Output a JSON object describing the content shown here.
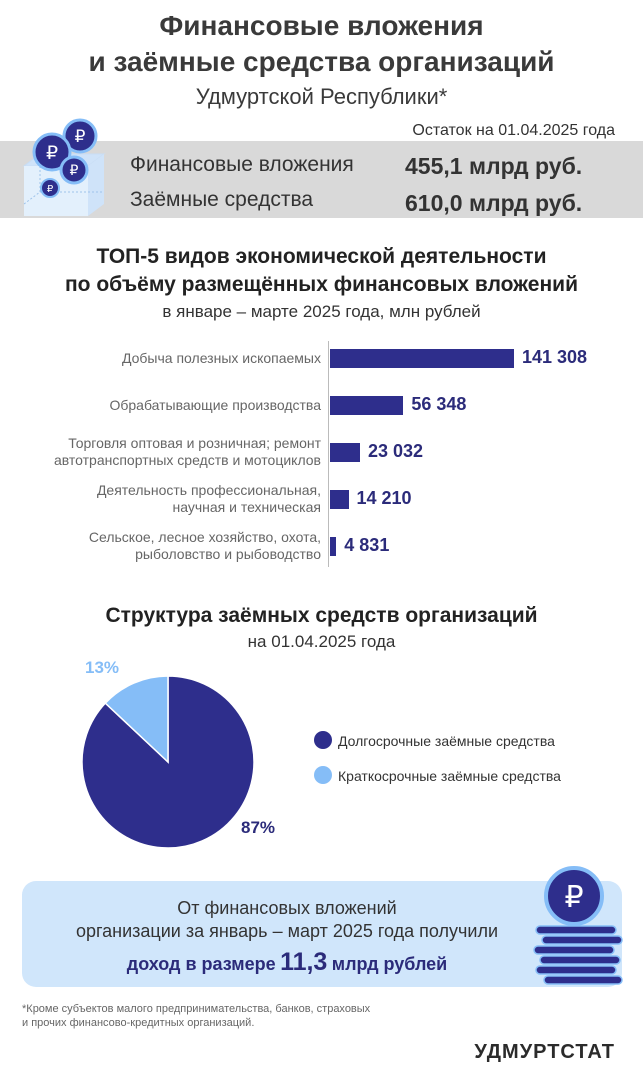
{
  "header": {
    "title_line1": "Финансовые вложения",
    "title_line2": "и заёмные средства организаций",
    "title_line3": "Удмуртской Республики*"
  },
  "summary": {
    "as_of": "Остаток на 01.04.2025 года",
    "rows": [
      {
        "label": "Финансовые вложения",
        "value": "455,1 млрд руб."
      },
      {
        "label": "Заёмные средства",
        "value": "610,0 млрд руб."
      }
    ],
    "coin_symbol": "₽"
  },
  "top5": {
    "title_line1": "ТОП-5 видов экономической деятельности",
    "title_line2": "по объёму размещённых финансовых вложений",
    "subtitle": "в январе – марте 2025 года, млн рублей"
  },
  "loans": {
    "title": "Структура заёмных средств организаций",
    "subtitle": "на 01.04.2025 года"
  },
  "chart_data": [
    {
      "type": "bar",
      "orientation": "horizontal",
      "categories": [
        [
          "Добыча полезных ископаемых"
        ],
        [
          "Обрабатывающие производства"
        ],
        [
          "Торговля оптовая и розничная; ремонт",
          "автотранспортных средств и мотоциклов"
        ],
        [
          "Деятельность профессиональная,",
          "научная и техническая"
        ],
        [
          "Сельское, лесное хозяйство, охота,",
          "рыболовство и рыбоводство"
        ]
      ],
      "values": [
        141308,
        56348,
        23032,
        14210,
        4831
      ],
      "value_labels": [
        "141 308",
        "56 348",
        "23 032",
        "14 210",
        "4 831"
      ],
      "color": "#2e2e8c"
    },
    {
      "type": "pie",
      "labels": [
        "Долгосрочные заёмные средства",
        "Краткосрочные заёмные средства"
      ],
      "values": [
        87,
        13
      ],
      "value_labels": [
        "87%",
        "13%"
      ],
      "colors": [
        "#2e2e8c",
        "#85bdf7"
      ]
    }
  ],
  "income_note": {
    "line1": "От финансовых вложений",
    "line2": "организации за январь – март 2025 года получили",
    "strong_prefix": "доход в размере",
    "strong_value": "11,3",
    "strong_suffix": "млрд рублей"
  },
  "footnote": {
    "line1": "*Кроме субъектов малого предпринимательства, банков, страховых",
    "line2": "и прочих финансово-кредитных организаций."
  },
  "brand": "УДМУРТСТАТ"
}
